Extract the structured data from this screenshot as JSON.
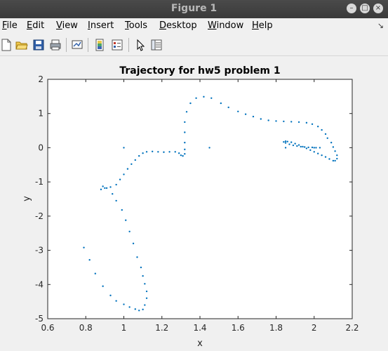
{
  "window": {
    "title": "Figure 1"
  },
  "menu": [
    {
      "label": "File",
      "underline": "F",
      "rest": "ile"
    },
    {
      "label": "Edit",
      "underline": "E",
      "rest": "dit"
    },
    {
      "label": "View",
      "underline": "V",
      "rest": "iew"
    },
    {
      "label": "Insert",
      "underline": "I",
      "rest": "nsert"
    },
    {
      "label": "Tools",
      "underline": "T",
      "rest": "ools"
    },
    {
      "label": "Desktop",
      "underline": "D",
      "rest": "esktop"
    },
    {
      "label": "Window",
      "underline": "W",
      "rest": "indow"
    },
    {
      "label": "Help",
      "underline": "H",
      "rest": "elp"
    }
  ],
  "toolbar": {
    "icons": [
      "new-file-icon",
      "open-folder-icon",
      "save-icon",
      "print-icon",
      "link-plot-icon",
      "insert-colorbar-icon",
      "insert-legend-icon",
      "pointer-icon",
      "property-inspector-icon"
    ]
  },
  "colors": {
    "series": "#0072bd",
    "titlebar": "#3f3f3f"
  },
  "chart_data": {
    "type": "scatter",
    "title": "Trajectory for hw5 problem 1",
    "xlabel": "x",
    "ylabel": "y",
    "xlim": [
      0.6,
      2.2
    ],
    "ylim": [
      -5,
      2
    ],
    "xticks": [
      "0.6",
      "0.8",
      "1",
      "1.2",
      "1.4",
      "1.6",
      "1.8",
      "2",
      "2.2"
    ],
    "yticks": [
      "2",
      "1",
      "0",
      "-1",
      "-2",
      "-3",
      "-4",
      "-5"
    ],
    "xtick_values": [
      0.6,
      0.8,
      1.0,
      1.2,
      1.4,
      1.6,
      1.8,
      2.0,
      2.2
    ],
    "ytick_values": [
      2,
      1,
      0,
      -1,
      -2,
      -3,
      -4,
      -5
    ],
    "grid": false,
    "series": [
      {
        "points": [
          [
            1.0,
            0.0
          ],
          [
            1.45,
            0.0
          ],
          [
            1.85,
            0.0
          ],
          [
            0.79,
            -2.92
          ],
          [
            0.82,
            -3.28
          ],
          [
            0.85,
            -3.68
          ],
          [
            0.89,
            -4.05
          ],
          [
            0.93,
            -4.32
          ],
          [
            0.96,
            -4.48
          ],
          [
            1.0,
            -4.58
          ],
          [
            1.03,
            -4.66
          ],
          [
            1.06,
            -4.72
          ],
          [
            1.08,
            -4.76
          ],
          [
            1.1,
            -4.73
          ],
          [
            1.11,
            -4.6
          ],
          [
            1.12,
            -4.4
          ],
          [
            1.12,
            -4.2
          ],
          [
            1.11,
            -3.98
          ],
          [
            1.1,
            -3.75
          ],
          [
            1.09,
            -3.5
          ],
          [
            1.07,
            -3.2
          ],
          [
            1.05,
            -2.8
          ],
          [
            1.03,
            -2.45
          ],
          [
            1.01,
            -2.12
          ],
          [
            0.99,
            -1.82
          ],
          [
            0.96,
            -1.55
          ],
          [
            0.94,
            -1.35
          ],
          [
            0.91,
            -1.18
          ],
          [
            0.89,
            -1.13
          ],
          [
            0.88,
            -1.22
          ],
          [
            0.9,
            -1.18
          ],
          [
            0.93,
            -1.15
          ],
          [
            0.96,
            -1.08
          ],
          [
            0.98,
            -0.93
          ],
          [
            1.0,
            -0.78
          ],
          [
            1.02,
            -0.62
          ],
          [
            1.04,
            -0.48
          ],
          [
            1.06,
            -0.36
          ],
          [
            1.08,
            -0.24
          ],
          [
            1.1,
            -0.16
          ],
          [
            1.12,
            -0.12
          ],
          [
            1.15,
            -0.11
          ],
          [
            1.18,
            -0.12
          ],
          [
            1.21,
            -0.13
          ],
          [
            1.24,
            -0.12
          ],
          [
            1.27,
            -0.12
          ],
          [
            1.29,
            -0.16
          ],
          [
            1.3,
            -0.22
          ],
          [
            1.31,
            -0.24
          ],
          [
            1.32,
            -0.18
          ],
          [
            1.32,
            -0.05
          ],
          [
            1.32,
            0.15
          ],
          [
            1.32,
            0.45
          ],
          [
            1.32,
            0.75
          ],
          [
            1.33,
            1.05
          ],
          [
            1.35,
            1.3
          ],
          [
            1.38,
            1.45
          ],
          [
            1.42,
            1.49
          ],
          [
            1.46,
            1.45
          ],
          [
            1.51,
            1.3
          ],
          [
            1.55,
            1.18
          ],
          [
            1.6,
            1.06
          ],
          [
            1.64,
            0.98
          ],
          [
            1.68,
            0.91
          ],
          [
            1.72,
            0.84
          ],
          [
            1.76,
            0.8
          ],
          [
            1.8,
            0.78
          ],
          [
            1.84,
            0.77
          ],
          [
            1.88,
            0.76
          ],
          [
            1.92,
            0.75
          ],
          [
            1.96,
            0.73
          ],
          [
            1.99,
            0.69
          ],
          [
            2.02,
            0.62
          ],
          [
            2.04,
            0.52
          ],
          [
            2.06,
            0.4
          ],
          [
            2.07,
            0.28
          ],
          [
            2.09,
            0.15
          ],
          [
            2.1,
            0.02
          ],
          [
            2.11,
            -0.1
          ],
          [
            2.12,
            -0.22
          ],
          [
            2.12,
            -0.32
          ],
          [
            2.11,
            -0.38
          ],
          [
            2.1,
            -0.38
          ],
          [
            2.08,
            -0.33
          ],
          [
            2.06,
            -0.27
          ],
          [
            2.04,
            -0.22
          ],
          [
            2.02,
            -0.17
          ],
          [
            2.0,
            -0.12
          ],
          [
            1.98,
            -0.07
          ],
          [
            1.96,
            -0.02
          ],
          [
            1.94,
            0.03
          ],
          [
            1.92,
            0.08
          ],
          [
            1.9,
            0.12
          ],
          [
            1.88,
            0.16
          ],
          [
            1.86,
            0.18
          ],
          [
            1.85,
            0.19
          ],
          [
            1.84,
            0.17
          ],
          [
            1.85,
            0.14
          ],
          [
            1.87,
            0.1
          ],
          [
            1.89,
            0.07
          ],
          [
            1.91,
            0.05
          ],
          [
            1.93,
            0.03
          ],
          [
            1.95,
            0.02
          ],
          [
            1.97,
            0.01
          ],
          [
            1.99,
            0.01
          ],
          [
            2.01,
            0.0
          ],
          [
            2.03,
            0.0
          ],
          [
            2.0,
            0.0
          ]
        ]
      }
    ]
  }
}
